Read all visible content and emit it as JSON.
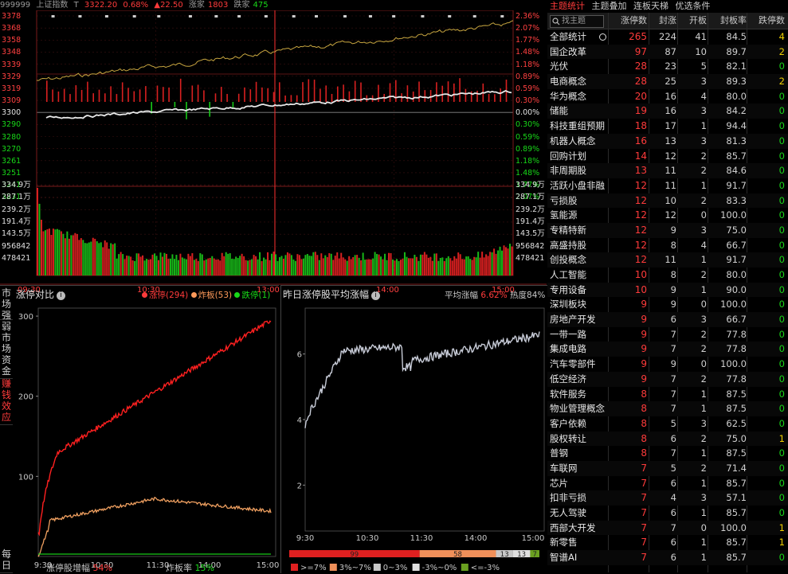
{
  "header": {
    "code": "999999",
    "name": "上证指数",
    "t_label": "T",
    "price": "3322.20",
    "change_pct": "0.68%",
    "change_pts": "▲22.50",
    "up_label": "涨家",
    "up_count": "1803",
    "down_label": "跌家",
    "down_count": "475"
  },
  "price_axis": {
    "left": [
      "3378",
      "3368",
      "3358",
      "3348",
      "3339",
      "3329",
      "3319",
      "3309",
      "3300",
      "3290",
      "3280",
      "3270",
      "3261",
      "3251",
      "3241",
      "3231"
    ],
    "right": [
      "2.36%",
      "2.07%",
      "1.77%",
      "1.48%",
      "1.18%",
      "0.89%",
      "0.59%",
      "0.30%",
      "0.00%",
      "0.30%",
      "0.59%",
      "0.89%",
      "1.18%",
      "1.48%",
      "1.77%",
      "2.07%"
    ],
    "right_colors": [
      "red",
      "red",
      "red",
      "red",
      "red",
      "red",
      "red",
      "red",
      "white",
      "green",
      "green",
      "green",
      "green",
      "green",
      "green",
      "green"
    ],
    "vol_left": [
      "334.9万",
      "287.1万",
      "239.2万",
      "191.4万",
      "143.5万",
      "956842",
      "478421"
    ],
    "vol_right": [
      "334.9万",
      "287.1万",
      "239.2万",
      "191.4万",
      "143.5万",
      "956842",
      "478421"
    ],
    "time_labels": [
      "09:30",
      "10:30",
      "13:00",
      "14:00",
      "15:00"
    ]
  },
  "right_panel": {
    "tabs": [
      "主题统计",
      "主题叠加",
      "连板天梯",
      "优选条件"
    ],
    "search_icon": "search-icon",
    "search_label": "找主题",
    "headers": [
      "涨停数",
      "封涨",
      "开板",
      "封板率",
      "跌停数"
    ],
    "rows": [
      [
        "全部统计",
        "265",
        "224",
        "41",
        "84.5",
        "4"
      ],
      [
        "国企改革",
        "97",
        "87",
        "10",
        "89.7",
        "2"
      ],
      [
        "光伏",
        "28",
        "23",
        "5",
        "82.1",
        "0"
      ],
      [
        "电商概念",
        "28",
        "25",
        "3",
        "89.3",
        "2"
      ],
      [
        "华为概念",
        "20",
        "16",
        "4",
        "80.0",
        "0"
      ],
      [
        "储能",
        "19",
        "16",
        "3",
        "84.2",
        "0"
      ],
      [
        "科技重组预期",
        "18",
        "17",
        "1",
        "94.4",
        "0"
      ],
      [
        "机器人概念",
        "16",
        "13",
        "3",
        "81.3",
        "0"
      ],
      [
        "回购计划",
        "14",
        "12",
        "2",
        "85.7",
        "0"
      ],
      [
        "非周期股",
        "13",
        "11",
        "2",
        "84.6",
        "0"
      ],
      [
        "活跃小盘非融",
        "12",
        "11",
        "1",
        "91.7",
        "0"
      ],
      [
        "亏损股",
        "12",
        "10",
        "2",
        "83.3",
        "0"
      ],
      [
        "氢能源",
        "12",
        "12",
        "0",
        "100.0",
        "0"
      ],
      [
        "专精特新",
        "12",
        "9",
        "3",
        "75.0",
        "0"
      ],
      [
        "高盛持股",
        "12",
        "8",
        "4",
        "66.7",
        "0"
      ],
      [
        "创投概念",
        "12",
        "11",
        "1",
        "91.7",
        "0"
      ],
      [
        "人工智能",
        "10",
        "8",
        "2",
        "80.0",
        "0"
      ],
      [
        "专用设备",
        "10",
        "9",
        "1",
        "90.0",
        "0"
      ],
      [
        "深圳板块",
        "9",
        "9",
        "0",
        "100.0",
        "0"
      ],
      [
        "房地产开发",
        "9",
        "6",
        "3",
        "66.7",
        "0"
      ],
      [
        "一带一路",
        "9",
        "7",
        "2",
        "77.8",
        "0"
      ],
      [
        "集成电路",
        "9",
        "7",
        "2",
        "77.8",
        "0"
      ],
      [
        "汽车零部件",
        "9",
        "9",
        "0",
        "100.0",
        "0"
      ],
      [
        "低空经济",
        "9",
        "7",
        "2",
        "77.8",
        "0"
      ],
      [
        "软件服务",
        "8",
        "7",
        "1",
        "87.5",
        "0"
      ],
      [
        "物业管理概念",
        "8",
        "7",
        "1",
        "87.5",
        "0"
      ],
      [
        "客户依赖",
        "8",
        "5",
        "3",
        "62.5",
        "0"
      ],
      [
        "股权转让",
        "8",
        "6",
        "2",
        "75.0",
        "1"
      ],
      [
        "普钢",
        "8",
        "7",
        "1",
        "87.5",
        "0"
      ],
      [
        "车联网",
        "7",
        "5",
        "2",
        "71.4",
        "0"
      ],
      [
        "芯片",
        "7",
        "6",
        "1",
        "85.7",
        "0"
      ],
      [
        "扣非亏损",
        "7",
        "4",
        "3",
        "57.1",
        "0"
      ],
      [
        "无人驾驶",
        "7",
        "6",
        "1",
        "85.7",
        "0"
      ],
      [
        "西部大开发",
        "7",
        "7",
        "0",
        "100.0",
        "1"
      ],
      [
        "新零售",
        "7",
        "6",
        "1",
        "85.7",
        "1"
      ],
      [
        "智谱AI",
        "7",
        "6",
        "1",
        "85.7",
        "0"
      ]
    ]
  },
  "side_tabs": [
    "市场强弱",
    "市场资金",
    "赚钱效应",
    "每日"
  ],
  "limit_panel": {
    "title": "涨停对比",
    "legend": [
      {
        "label": "涨停(294)",
        "color": "#ff3b3b"
      },
      {
        "label": "炸板(53)",
        "color": "#ff9a5a"
      },
      {
        "label": "跌停(1)",
        "color": "#18d818"
      }
    ],
    "y_ticks": [
      "300",
      "200",
      "100"
    ],
    "x_ticks": [
      "9:30",
      "10:30",
      "11:30",
      "14:00",
      "15:00"
    ],
    "footer_left_label": "涨停股增幅",
    "footer_left_value": "54%",
    "footer_right_label": "炸板率",
    "footer_right_value": "15%"
  },
  "yesterday_panel": {
    "title": "昨日涨停股平均涨幅",
    "avg_label": "平均涨幅",
    "avg_value": "6.62%",
    "heat_label": "热度84%",
    "y_ticks": [
      "6",
      "4",
      "2"
    ],
    "x_ticks": [
      "9:30",
      "10:30",
      "11:30",
      "14:00",
      "15:00"
    ],
    "dist_bar": [
      {
        "value": "99",
        "color": "#e02020"
      },
      {
        "value": "58",
        "color": "#f0905a"
      },
      {
        "value": "13",
        "color": "#c8c8c8"
      },
      {
        "value": "13",
        "color": "#e0e0e0"
      },
      {
        "value": "7",
        "color": "#6aa020"
      }
    ],
    "dist_legend": [
      {
        "label": ">=7%",
        "color": "#e02020"
      },
      {
        "label": "3%~7%",
        "color": "#f0905a"
      },
      {
        "label": "0~3%",
        "color": "#c8c8c8"
      },
      {
        "label": "-3%~0%",
        "color": "#e0e0e0"
      },
      {
        "label": "<=-3%",
        "color": "#6aa020"
      }
    ]
  },
  "colors": {
    "up": "#ff3b3b",
    "down": "#18d818",
    "line_white": "#e8e8e8",
    "line_gold": "#d0b040"
  }
}
